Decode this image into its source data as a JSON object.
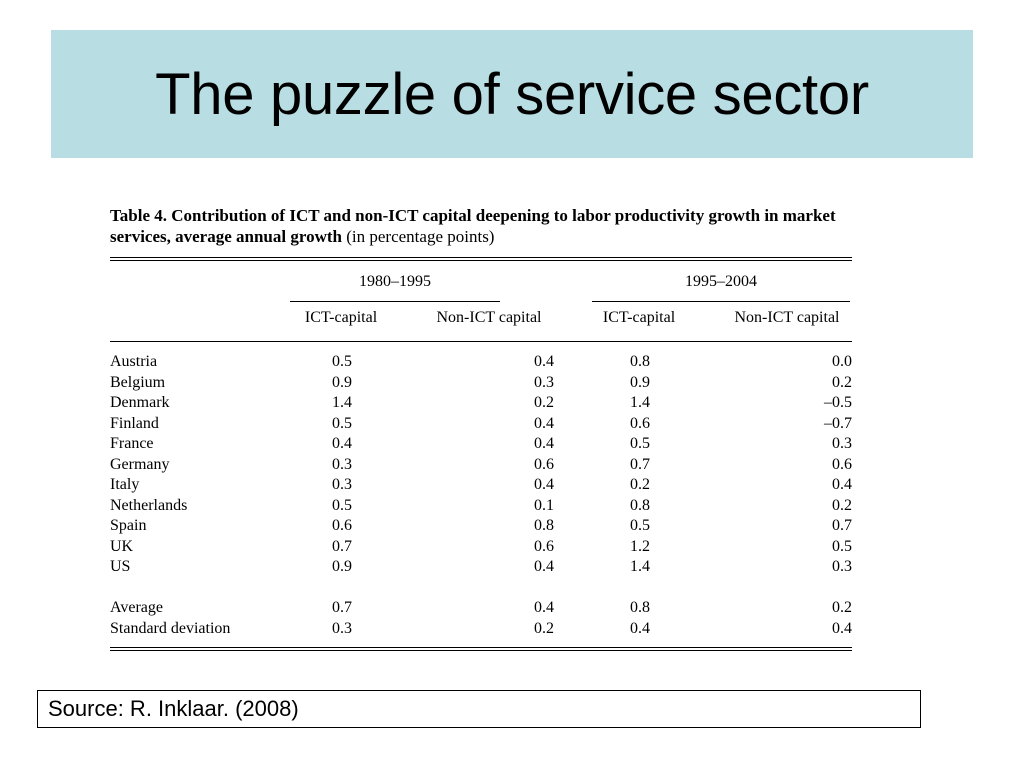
{
  "slide": {
    "title": "The puzzle of service sector",
    "source": "Source: R. Inklaar. (2008)"
  },
  "table": {
    "label": "Table 4.",
    "caption": "Contribution of ICT and non-ICT capital deepening to labor productivity growth in market services, average annual growth",
    "caption_suffix": "(in percentage points)",
    "periods": [
      "1980–1995",
      "1995–2004"
    ],
    "column_headers": [
      "ICT-capital",
      "Non-ICT capital",
      "ICT-capital",
      "Non-ICT capital"
    ],
    "rows": [
      {
        "country": "Austria",
        "values": [
          "0.5",
          "0.4",
          "0.8",
          "0.0"
        ]
      },
      {
        "country": "Belgium",
        "values": [
          "0.9",
          "0.3",
          "0.9",
          "0.2"
        ]
      },
      {
        "country": "Denmark",
        "values": [
          "1.4",
          "0.2",
          "1.4",
          "–0.5"
        ]
      },
      {
        "country": "Finland",
        "values": [
          "0.5",
          "0.4",
          "0.6",
          "–0.7"
        ]
      },
      {
        "country": "France",
        "values": [
          "0.4",
          "0.4",
          "0.5",
          "0.3"
        ]
      },
      {
        "country": "Germany",
        "values": [
          "0.3",
          "0.6",
          "0.7",
          "0.6"
        ]
      },
      {
        "country": "Italy",
        "values": [
          "0.3",
          "0.4",
          "0.2",
          "0.4"
        ]
      },
      {
        "country": "Netherlands",
        "values": [
          "0.5",
          "0.1",
          "0.8",
          "0.2"
        ]
      },
      {
        "country": "Spain",
        "values": [
          "0.6",
          "0.8",
          "0.5",
          "0.7"
        ]
      },
      {
        "country": "UK",
        "values": [
          "0.7",
          "0.6",
          "1.2",
          "0.5"
        ]
      },
      {
        "country": "US",
        "values": [
          "0.9",
          "0.4",
          "1.4",
          "0.3"
        ]
      }
    ],
    "summary_rows": [
      {
        "country": "Average",
        "values": [
          "0.7",
          "0.4",
          "0.8",
          "0.2"
        ]
      },
      {
        "country": "Standard deviation",
        "values": [
          "0.3",
          "0.2",
          "0.4",
          "0.4"
        ]
      }
    ]
  },
  "colors": {
    "title_background": "#b8dde2"
  }
}
